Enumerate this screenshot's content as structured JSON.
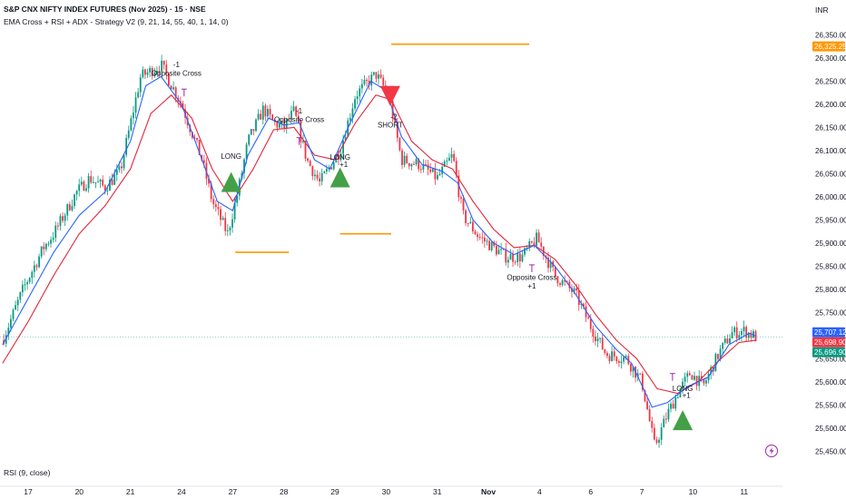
{
  "header": {
    "title": "S&P CNX NIFTY INDEX FUTURES (Nov 2025) · 15 · NSE",
    "study": "EMA Cross + RSI + ADX - Strategy V2 (9, 21, 14, 55, 40, 1, 14, 0)"
  },
  "currency": "INR",
  "rsi_label": "RSI (9, close)",
  "colors": {
    "up": "#089981",
    "down": "#f23645",
    "ema_fast": "#2962ff",
    "ema_slow": "#e0263d",
    "level": "#ff9800",
    "long": "#43a047",
    "short": "#f23645",
    "marker": "#9c27b0",
    "last_price": "#089981"
  },
  "chart_data": {
    "type": "candlestick",
    "ylim": [
      25425,
      26400
    ],
    "y_ticks": [
      26350,
      26300,
      26250,
      26200,
      26150,
      26100,
      26050,
      26000,
      25950,
      25900,
      25850,
      25800,
      25750,
      25700,
      25650,
      25600,
      25550,
      25500,
      25450
    ],
    "y_tick_labels": [
      "26,350.00",
      "26,300.00",
      "26,250.00",
      "26,200.00",
      "26,150.00",
      "26,100.00",
      "26,050.00",
      "26,000.00",
      "25,950.00",
      "25,900.00",
      "25,850.00",
      "25,800.00",
      "25,750.00",
      "25,700.00",
      "25,650.00",
      "25,600.00",
      "25,550.00",
      "25,500.00",
      "25,450.00"
    ],
    "x_labels": [
      {
        "label": "17",
        "t": 0.5
      },
      {
        "label": "20",
        "t": 1.5
      },
      {
        "label": "21",
        "t": 2.5
      },
      {
        "label": "24",
        "t": 3.5
      },
      {
        "label": "27",
        "t": 4.5
      },
      {
        "label": "28",
        "t": 5.5
      },
      {
        "label": "29",
        "t": 6.5
      },
      {
        "label": "30",
        "t": 7.5
      },
      {
        "label": "31",
        "t": 8.5
      },
      {
        "label": "Nov",
        "t": 9.5
      },
      {
        "label": "4",
        "t": 10.5
      },
      {
        "label": "6",
        "t": 11.5
      },
      {
        "label": "7",
        "t": 12.5
      },
      {
        "label": "10",
        "t": 13.5
      },
      {
        "label": "11",
        "t": 14.5
      }
    ],
    "t_range": [
      -0.05,
      15.25
    ],
    "path": [
      [
        0.0,
        25690
      ],
      [
        0.4,
        25800
      ],
      [
        0.8,
        25890
      ],
      [
        1.0,
        25920
      ],
      [
        1.2,
        25960
      ],
      [
        1.45,
        26010
      ],
      [
        1.7,
        26040
      ],
      [
        2.0,
        26020
      ],
      [
        2.3,
        26055
      ],
      [
        2.7,
        26260
      ],
      [
        3.1,
        26285
      ],
      [
        3.5,
        26200
      ],
      [
        3.9,
        26080
      ],
      [
        4.1,
        25990
      ],
      [
        4.4,
        25920
      ],
      [
        4.6,
        26010
      ],
      [
        4.8,
        26120
      ],
      [
        5.1,
        26190
      ],
      [
        5.3,
        26160
      ],
      [
        5.5,
        26150
      ],
      [
        5.7,
        26185
      ],
      [
        5.95,
        26080
      ],
      [
        6.2,
        26030
      ],
      [
        6.6,
        26100
      ],
      [
        6.9,
        26220
      ],
      [
        7.3,
        26265
      ],
      [
        7.55,
        26220
      ],
      [
        7.8,
        26080
      ],
      [
        8.15,
        26070
      ],
      [
        8.5,
        26040
      ],
      [
        8.8,
        26090
      ],
      [
        9.0,
        25960
      ],
      [
        9.3,
        25915
      ],
      [
        9.6,
        25890
      ],
      [
        9.85,
        25870
      ],
      [
        10.15,
        25870
      ],
      [
        10.45,
        25910
      ],
      [
        10.8,
        25830
      ],
      [
        11.2,
        25790
      ],
      [
        11.5,
        25720
      ],
      [
        11.8,
        25660
      ],
      [
        12.2,
        25650
      ],
      [
        12.5,
        25600
      ],
      [
        12.75,
        25460
      ],
      [
        13.0,
        25530
      ],
      [
        13.2,
        25575
      ],
      [
        13.45,
        25620
      ],
      [
        13.7,
        25590
      ],
      [
        14.0,
        25660
      ],
      [
        14.25,
        25705
      ],
      [
        14.5,
        25710
      ],
      [
        14.75,
        25696
      ]
    ],
    "ema_fast": [
      [
        0.0,
        25680
      ],
      [
        0.5,
        25780
      ],
      [
        1.0,
        25880
      ],
      [
        1.5,
        25960
      ],
      [
        2.0,
        26010
      ],
      [
        2.5,
        26120
      ],
      [
        2.8,
        26240
      ],
      [
        3.1,
        26260
      ],
      [
        3.5,
        26200
      ],
      [
        3.8,
        26110
      ],
      [
        4.2,
        25990
      ],
      [
        4.5,
        25970
      ],
      [
        4.8,
        26090
      ],
      [
        5.2,
        26170
      ],
      [
        5.5,
        26155
      ],
      [
        5.8,
        26160
      ],
      [
        6.1,
        26080
      ],
      [
        6.4,
        26060
      ],
      [
        6.8,
        26160
      ],
      [
        7.2,
        26250
      ],
      [
        7.5,
        26230
      ],
      [
        7.8,
        26130
      ],
      [
        8.2,
        26070
      ],
      [
        8.6,
        26055
      ],
      [
        8.9,
        26030
      ],
      [
        9.2,
        25950
      ],
      [
        9.6,
        25900
      ],
      [
        10.0,
        25875
      ],
      [
        10.4,
        25895
      ],
      [
        10.8,
        25850
      ],
      [
        11.2,
        25790
      ],
      [
        11.6,
        25720
      ],
      [
        12.0,
        25670
      ],
      [
        12.3,
        25640
      ],
      [
        12.7,
        25545
      ],
      [
        13.0,
        25555
      ],
      [
        13.4,
        25590
      ],
      [
        13.8,
        25610
      ],
      [
        14.2,
        25680
      ],
      [
        14.6,
        25705
      ],
      [
        14.75,
        25698
      ]
    ],
    "ema_slow": [
      [
        0.0,
        25640
      ],
      [
        0.5,
        25730
      ],
      [
        1.0,
        25830
      ],
      [
        1.5,
        25920
      ],
      [
        2.0,
        25980
      ],
      [
        2.5,
        26060
      ],
      [
        2.9,
        26180
      ],
      [
        3.3,
        26220
      ],
      [
        3.7,
        26170
      ],
      [
        4.1,
        26060
      ],
      [
        4.5,
        25990
      ],
      [
        4.9,
        26060
      ],
      [
        5.3,
        26145
      ],
      [
        5.7,
        26150
      ],
      [
        6.1,
        26090
      ],
      [
        6.5,
        26080
      ],
      [
        6.9,
        26160
      ],
      [
        7.3,
        26220
      ],
      [
        7.6,
        26210
      ],
      [
        8.0,
        26120
      ],
      [
        8.4,
        26080
      ],
      [
        8.8,
        26060
      ],
      [
        9.2,
        25990
      ],
      [
        9.6,
        25930
      ],
      [
        10.0,
        25890
      ],
      [
        10.4,
        25895
      ],
      [
        10.8,
        25865
      ],
      [
        11.2,
        25810
      ],
      [
        11.6,
        25745
      ],
      [
        12.0,
        25690
      ],
      [
        12.4,
        25650
      ],
      [
        12.8,
        25585
      ],
      [
        13.2,
        25575
      ],
      [
        13.6,
        25600
      ],
      [
        14.0,
        25645
      ],
      [
        14.4,
        25685
      ],
      [
        14.75,
        25690
      ]
    ],
    "levels": [
      {
        "t0": 4.55,
        "t1": 5.6,
        "y": 25880
      },
      {
        "t0": 6.6,
        "t1": 7.6,
        "y": 25920
      },
      {
        "t0": 7.6,
        "t1": 10.3,
        "y": 26330
      }
    ],
    "signals": [
      {
        "type": "long",
        "t": 4.47,
        "y": 26030,
        "label": "LONG",
        "label_y": 26082
      },
      {
        "type": "long",
        "t": 6.6,
        "y": 26040,
        "label": "LONG",
        "label_y": 26080,
        "qty": "+1",
        "qty_y": 26065
      },
      {
        "type": "short",
        "t": 7.58,
        "y": 26220,
        "label": "SHORT",
        "label_y": 26150,
        "qty": "-2",
        "qty_y": 26168
      },
      {
        "type": "long",
        "t": 13.3,
        "y": 25515,
        "label": "LONG",
        "label_y": 25580,
        "qty": "+1",
        "qty_y": 25565
      }
    ],
    "annotations": [
      {
        "text": "-1",
        "t": 3.4,
        "y": 26280
      },
      {
        "text": "Opposite Cross",
        "t": 3.4,
        "y": 26262
      },
      {
        "text": "-1",
        "t": 5.8,
        "y": 26180
      },
      {
        "text": "Opposite Cross",
        "t": 5.8,
        "y": 26162
      },
      {
        "text": "Opposite Cross",
        "t": 10.35,
        "y": 25820
      },
      {
        "text": "+1",
        "t": 10.35,
        "y": 25802
      }
    ],
    "markers": [
      {
        "t": 3.55,
        "y": 26225
      },
      {
        "t": 5.8,
        "y": 26120
      },
      {
        "t": 10.35,
        "y": 25845
      },
      {
        "t": 13.1,
        "y": 25610
      }
    ],
    "price_tags": [
      {
        "value": 26325.25,
        "label": "26,325.25",
        "color": "#ff9800"
      },
      {
        "value": 25707.12,
        "label": "25,707.12",
        "color": "#2962ff"
      },
      {
        "value": 25698.9,
        "label": "25,698.90",
        "color": "#f23645"
      },
      {
        "value": 25696.9,
        "label": "25,696.90",
        "color": "#089981"
      }
    ],
    "last_price": 25696.9,
    "candle_count": 320
  }
}
